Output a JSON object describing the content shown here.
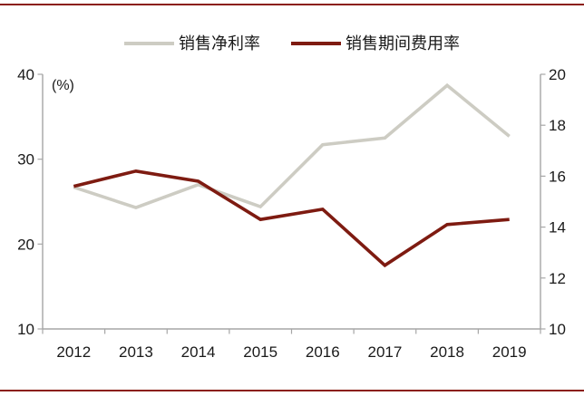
{
  "page": {
    "background": "#ffffff",
    "top_border_color": "#8b1f13",
    "bottom_border_color": "#8b1f13"
  },
  "legend": {
    "items": [
      {
        "label": "销售净利率",
        "color": "#cdccc3"
      },
      {
        "label": "销售期间费用率",
        "color": "#7e1b11"
      }
    ]
  },
  "chart_data": {
    "type": "line",
    "title": "",
    "unit_label": "(%)",
    "grid": false,
    "legend_position": "top",
    "categories": [
      "2012",
      "2013",
      "2014",
      "2015",
      "2016",
      "2017",
      "2018",
      "2019"
    ],
    "series": [
      {
        "name": "销售净利率",
        "axis": "left",
        "color": "#cdccc3",
        "values": [
          26.7,
          24.3,
          27.0,
          24.4,
          31.7,
          32.5,
          38.7,
          32.7
        ]
      },
      {
        "name": "销售期间费用率",
        "axis": "right",
        "color": "#7e1b11",
        "values": [
          15.6,
          16.2,
          15.8,
          14.3,
          14.7,
          12.5,
          14.1,
          14.3
        ]
      }
    ],
    "left_axis": {
      "min": 10,
      "max": 40,
      "ticks": [
        40,
        30,
        20,
        10
      ]
    },
    "right_axis": {
      "min": 10,
      "max": 20,
      "ticks": [
        20,
        18,
        16,
        14,
        12,
        10
      ]
    },
    "axis_color": "#a6a6a6",
    "label_color": "#1a1a1a"
  }
}
